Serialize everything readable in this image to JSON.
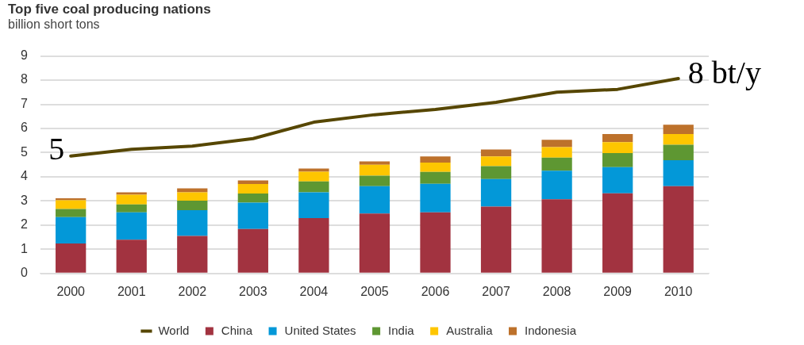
{
  "chart_data": {
    "type": "bar",
    "title": "Top five coal producing nations",
    "subtitle": "billion short tons",
    "categories": [
      "2000",
      "2001",
      "2002",
      "2003",
      "2004",
      "2005",
      "2006",
      "2007",
      "2008",
      "2009",
      "2010"
    ],
    "series": [
      {
        "name": "China",
        "color": "#a23340",
        "values": [
          1.24,
          1.4,
          1.55,
          1.84,
          2.29,
          2.48,
          2.53,
          2.77,
          3.07,
          3.32,
          3.61
        ]
      },
      {
        "name": "United States",
        "color": "#0398d8",
        "values": [
          1.09,
          1.13,
          1.07,
          1.09,
          1.07,
          1.13,
          1.18,
          1.14,
          1.18,
          1.08,
          1.08
        ]
      },
      {
        "name": "India",
        "color": "#5e9732",
        "values": [
          0.34,
          0.33,
          0.39,
          0.38,
          0.45,
          0.44,
          0.49,
          0.53,
          0.54,
          0.58,
          0.64
        ]
      },
      {
        "name": "Australia",
        "color": "#fec600",
        "values": [
          0.36,
          0.4,
          0.35,
          0.39,
          0.4,
          0.45,
          0.39,
          0.4,
          0.44,
          0.45,
          0.44
        ]
      },
      {
        "name": "Indonesia",
        "color": "#bd712b",
        "values": [
          0.08,
          0.1,
          0.16,
          0.15,
          0.13,
          0.14,
          0.25,
          0.29,
          0.3,
          0.34,
          0.39
        ]
      },
      {
        "name": "World",
        "type": "line",
        "color": "#564600",
        "values": [
          4.86,
          5.14,
          5.27,
          5.58,
          6.26,
          6.57,
          6.79,
          7.08,
          7.5,
          7.62,
          8.07
        ]
      }
    ],
    "stacked": true,
    "ylim": [
      0,
      9
    ],
    "yticks": [
      0,
      1,
      2,
      3,
      4,
      5,
      6,
      7,
      8,
      9
    ],
    "grid": "y",
    "legend": "bottom",
    "marker": "none",
    "annotations": [
      {
        "text": "5",
        "x": "2000",
        "y": 4.86
      },
      {
        "text": "8 bt/y",
        "x": "2010",
        "y": 8.07
      }
    ]
  }
}
